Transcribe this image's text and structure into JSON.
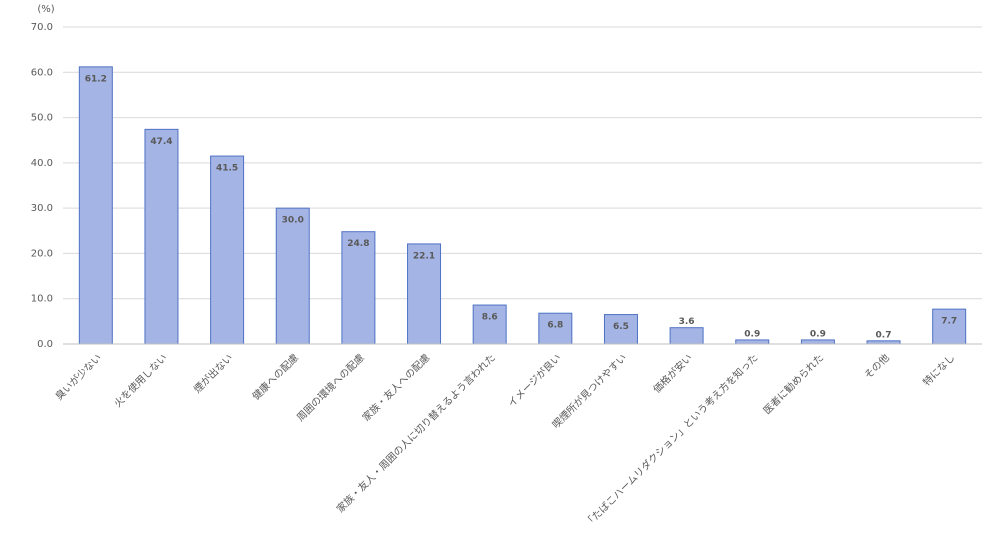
{
  "chart_data": {
    "type": "bar",
    "y_label": "(%)",
    "categories": [
      "臭いが少ない",
      "火を使用しない",
      "煙が出ない",
      "健康への配慮",
      "周囲の環境への配慮",
      "家族・友人への配慮",
      "家族・友人・周囲の人に切り替えるよう言われた",
      "イメージが良い",
      "喫煙所が見つけやすい",
      "価格が安い",
      "「たばこハームリダクション」という考え方を知った",
      "医者に勧められた",
      "その他",
      "特になし"
    ],
    "values": [
      61.2,
      47.4,
      41.5,
      30.0,
      24.8,
      22.1,
      8.6,
      6.8,
      6.5,
      3.6,
      0.9,
      0.9,
      0.7,
      7.7
    ],
    "value_labels": [
      "61.2",
      "47.4",
      "41.5",
      "30.0",
      "24.8",
      "22.1",
      "8.6",
      "6.8",
      "6.5",
      "3.6",
      "0.9",
      "0.9",
      "0.7",
      "7.7"
    ],
    "color": "#a4b4e4",
    "edge_color": "#4f72c4",
    "ylim": [
      0,
      70
    ],
    "yticks": [
      {
        "value": 0,
        "label": "0.0"
      },
      {
        "value": 10,
        "label": "10.0"
      },
      {
        "value": 20,
        "label": "20.0"
      },
      {
        "value": 30,
        "label": "30.0"
      },
      {
        "value": 40,
        "label": "40.0"
      },
      {
        "value": 50,
        "label": "50.0"
      },
      {
        "value": 60,
        "label": "60.0"
      },
      {
        "value": 70,
        "label": "70.0"
      }
    ],
    "grid": true
  }
}
